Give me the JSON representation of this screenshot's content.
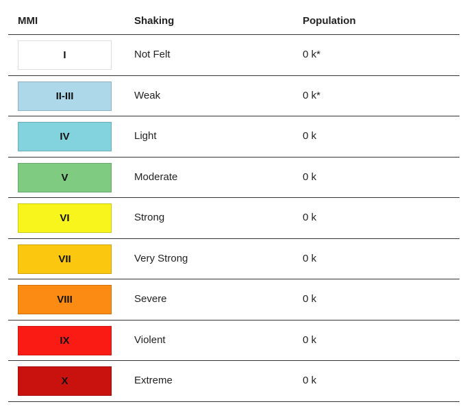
{
  "table": {
    "header": [
      "MMI",
      "Shaking",
      "Population"
    ],
    "rows": [
      [
        "I",
        "Not Felt",
        "0 k*"
      ],
      [
        "II-III",
        "Weak",
        "0 k*"
      ],
      [
        "IV",
        "Light",
        "0 k"
      ],
      [
        "V",
        "Moderate",
        "0 k"
      ],
      [
        "VI",
        "Strong",
        "0 k"
      ],
      [
        "VII",
        "Very Strong",
        "0 k"
      ],
      [
        "VIII",
        "Severe",
        "0 k"
      ],
      [
        "IX",
        "Violent",
        "0 k"
      ],
      [
        "X",
        "Extreme",
        "0 k"
      ]
    ]
  }
}
